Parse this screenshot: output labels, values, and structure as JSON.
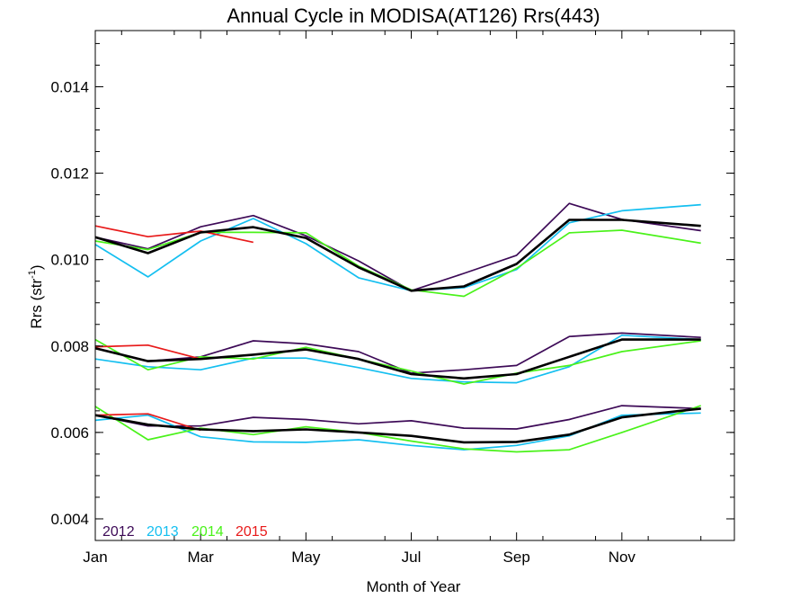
{
  "chart_data": {
    "type": "line",
    "title": "Annual Cycle in MODISA(AT126) Rrs(443)",
    "xlabel": "Month of Year",
    "ylabel": "Rrs (str",
    "ylabel_sup": "-1",
    "ylabel_close": ")",
    "xlim": [
      0,
      12
    ],
    "ylim": [
      0.0035,
      0.0153
    ],
    "x_ticks": [
      {
        "value": 0,
        "label": "Jan"
      },
      {
        "value": 2,
        "label": "Mar"
      },
      {
        "value": 4,
        "label": "May"
      },
      {
        "value": 6,
        "label": "Jul"
      },
      {
        "value": 8,
        "label": "Sep"
      },
      {
        "value": 10,
        "label": "Nov"
      }
    ],
    "y_ticks": [
      {
        "value": 0.004,
        "label": "0.004"
      },
      {
        "value": 0.006,
        "label": "0.006"
      },
      {
        "value": 0.008,
        "label": "0.008"
      },
      {
        "value": 0.01,
        "label": "0.010"
      },
      {
        "value": 0.012,
        "label": "0.012"
      },
      {
        "value": 0.014,
        "label": "0.014"
      }
    ],
    "grid": false,
    "legend_position": "bottom-left",
    "series": [
      {
        "name": "2012",
        "color": "#3d0a57",
        "group": "upper",
        "x": [
          0,
          1,
          2,
          3,
          4,
          5,
          6,
          7,
          8,
          9,
          10,
          11.5
        ],
        "y": [
          0.01052,
          0.01025,
          0.01076,
          0.01102,
          0.01055,
          0.00997,
          0.00928,
          0.00968,
          0.0101,
          0.0113,
          0.01093,
          0.01067
        ]
      },
      {
        "name": "2013",
        "color": "#14bff0",
        "group": "upper",
        "x": [
          0,
          1,
          2,
          3,
          4,
          5,
          6,
          7,
          8,
          9,
          10,
          11.5
        ],
        "y": [
          0.01035,
          0.0096,
          0.01043,
          0.01095,
          0.01037,
          0.00958,
          0.00928,
          0.00935,
          0.00977,
          0.01085,
          0.01113,
          0.01127
        ]
      },
      {
        "name": "2014",
        "color": "#4af21a",
        "group": "upper",
        "x": [
          0,
          1,
          2,
          3,
          4,
          5,
          6,
          7,
          8,
          9,
          10,
          11.5
        ],
        "y": [
          0.01043,
          0.01023,
          0.01063,
          0.01063,
          0.01062,
          0.00985,
          0.0093,
          0.00915,
          0.0098,
          0.01062,
          0.01068,
          0.01038
        ]
      },
      {
        "name": "2015",
        "color": "#e81a1a",
        "group": "upper",
        "x": [
          0,
          1,
          2,
          3
        ],
        "y": [
          0.01078,
          0.01053,
          0.01066,
          0.0104
        ]
      },
      {
        "name": "",
        "color": "#000000",
        "group": "upper",
        "role": "mean",
        "x": [
          0,
          1,
          2,
          3,
          4,
          5,
          6,
          7,
          8,
          9,
          10,
          11.5
        ],
        "y": [
          0.01052,
          0.01015,
          0.01063,
          0.01075,
          0.0105,
          0.00982,
          0.00928,
          0.00938,
          0.0099,
          0.01092,
          0.01092,
          0.01078
        ]
      },
      {
        "name": "2012",
        "color": "#3d0a57",
        "group": "middle",
        "x": [
          0,
          1,
          2,
          3,
          4,
          5,
          6,
          7,
          8,
          9,
          10,
          11.5
        ],
        "y": [
          0.00795,
          0.00765,
          0.00775,
          0.00812,
          0.00805,
          0.00787,
          0.00737,
          0.00745,
          0.00755,
          0.00822,
          0.0083,
          0.0082
        ]
      },
      {
        "name": "2013",
        "color": "#14bff0",
        "group": "middle",
        "x": [
          0,
          1,
          2,
          3,
          4,
          5,
          6,
          7,
          8,
          9,
          10,
          11.5
        ],
        "y": [
          0.0077,
          0.00752,
          0.00745,
          0.00772,
          0.00772,
          0.0075,
          0.00725,
          0.00717,
          0.00715,
          0.00752,
          0.00825,
          0.00815
        ]
      },
      {
        "name": "2014",
        "color": "#4af21a",
        "group": "middle",
        "x": [
          0,
          1,
          2,
          3,
          4,
          5,
          6,
          7,
          8,
          9,
          10,
          11.5
        ],
        "y": [
          0.00815,
          0.00745,
          0.00775,
          0.0077,
          0.00797,
          0.0077,
          0.00742,
          0.00712,
          0.00737,
          0.00755,
          0.00787,
          0.00812
        ]
      },
      {
        "name": "2015",
        "color": "#e81a1a",
        "group": "middle",
        "x": [
          0,
          1,
          2,
          3
        ],
        "y": [
          0.00798,
          0.00802,
          0.0077,
          0.0078
        ]
      },
      {
        "name": "",
        "color": "#000000",
        "group": "middle",
        "role": "mean",
        "x": [
          0,
          1,
          2,
          3,
          4,
          5,
          6,
          7,
          8,
          9,
          10,
          11.5
        ],
        "y": [
          0.00795,
          0.00765,
          0.0077,
          0.0078,
          0.00792,
          0.0077,
          0.00735,
          0.00725,
          0.00735,
          0.00775,
          0.00815,
          0.00815
        ]
      },
      {
        "name": "2012",
        "color": "#3d0a57",
        "group": "lower",
        "x": [
          0,
          1,
          2,
          3,
          4,
          5,
          6,
          7,
          8,
          9,
          10,
          11.5
        ],
        "y": [
          0.0064,
          0.00615,
          0.00615,
          0.00635,
          0.0063,
          0.0062,
          0.00627,
          0.0061,
          0.00608,
          0.0063,
          0.00662,
          0.00655
        ]
      },
      {
        "name": "2013",
        "color": "#14bff0",
        "group": "lower",
        "x": [
          0,
          1,
          2,
          3,
          4,
          5,
          6,
          7,
          8,
          9,
          10,
          11.5
        ],
        "y": [
          0.00628,
          0.0064,
          0.0059,
          0.00578,
          0.00577,
          0.00583,
          0.0057,
          0.0056,
          0.0057,
          0.00592,
          0.0064,
          0.00645
        ]
      },
      {
        "name": "2014",
        "color": "#4af21a",
        "group": "lower",
        "x": [
          0,
          1,
          2,
          3,
          4,
          5,
          6,
          7,
          8,
          9,
          10,
          11.5
        ],
        "y": [
          0.0066,
          0.00583,
          0.0061,
          0.00595,
          0.00613,
          0.006,
          0.0058,
          0.00562,
          0.00555,
          0.0056,
          0.006,
          0.00662
        ]
      },
      {
        "name": "2015",
        "color": "#e81a1a",
        "group": "lower",
        "x": [
          0,
          1,
          2
        ],
        "y": [
          0.0064,
          0.00643,
          0.00605
        ]
      },
      {
        "name": "",
        "color": "#000000",
        "group": "lower",
        "role": "mean",
        "x": [
          0,
          1,
          2,
          3,
          4,
          5,
          6,
          7,
          8,
          9,
          10,
          11.5
        ],
        "y": [
          0.0064,
          0.00618,
          0.00607,
          0.00603,
          0.00607,
          0.006,
          0.00592,
          0.00577,
          0.00578,
          0.00595,
          0.00635,
          0.00655
        ]
      }
    ],
    "legend": [
      {
        "label": "2012",
        "color": "#3d0a57"
      },
      {
        "label": "2013",
        "color": "#14bff0"
      },
      {
        "label": "2014",
        "color": "#4af21a"
      },
      {
        "label": "2015",
        "color": "#e81a1a"
      }
    ]
  }
}
